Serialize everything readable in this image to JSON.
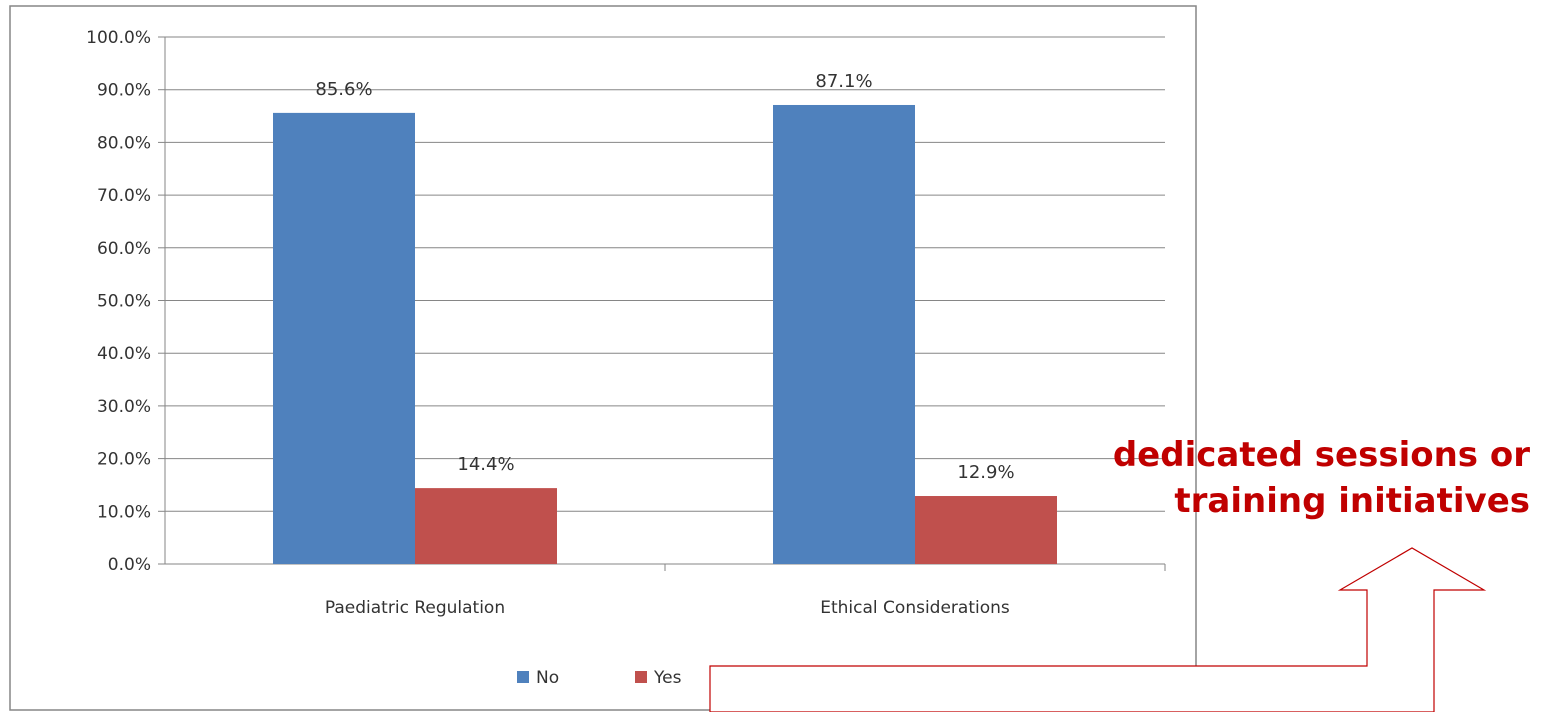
{
  "chart_data": {
    "type": "bar",
    "categories": [
      "Paediatric Regulation",
      "Ethical Considerations"
    ],
    "series": [
      {
        "name": "No",
        "values": [
          85.6,
          87.1
        ],
        "color": "#4f81bd"
      },
      {
        "name": "Yes",
        "values": [
          14.4,
          12.9
        ],
        "color": "#c0504d"
      }
    ],
    "data_labels": [
      [
        "85.6%",
        "87.1%"
      ],
      [
        "14.4%",
        "12.9%"
      ]
    ],
    "y_ticks": [
      "0.0%",
      "10.0%",
      "20.0%",
      "30.0%",
      "40.0%",
      "50.0%",
      "60.0%",
      "70.0%",
      "80.0%",
      "90.0%",
      "100.0%"
    ],
    "ylim": [
      0,
      100
    ],
    "grid": true,
    "legend_position": "bottom"
  },
  "annotation": {
    "text": "dedicated sessions or training initiatives",
    "color": "#c00000",
    "arrow_icon": "up-arrow-outline-icon"
  }
}
